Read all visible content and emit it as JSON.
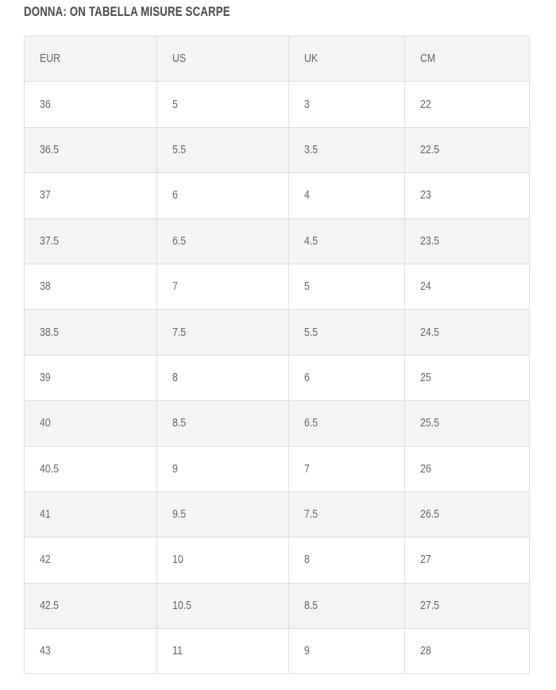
{
  "title": "DONNA: ON TABELLA MISURE SCARPE",
  "table": {
    "headers": [
      "EUR",
      "US",
      "UK",
      "CM"
    ],
    "rows": [
      [
        "36",
        "5",
        "3",
        "22"
      ],
      [
        "36.5",
        "5.5",
        "3.5",
        "22.5"
      ],
      [
        "37",
        "6",
        "4",
        "23"
      ],
      [
        "37.5",
        "6.5",
        "4.5",
        "23.5"
      ],
      [
        "38",
        "7",
        "5",
        "24"
      ],
      [
        "38.5",
        "7.5",
        "5.5",
        "24.5"
      ],
      [
        "39",
        "8",
        "6",
        "25"
      ],
      [
        "40",
        "8.5",
        "6.5",
        "25.5"
      ],
      [
        "40.5",
        "9",
        "7",
        "26"
      ],
      [
        "41",
        "9.5",
        "7.5",
        "26.5"
      ],
      [
        "42",
        "10",
        "8",
        "27"
      ],
      [
        "42.5",
        "10.5",
        "8.5",
        "27.5"
      ],
      [
        "43",
        "11",
        "9",
        "28"
      ]
    ]
  }
}
